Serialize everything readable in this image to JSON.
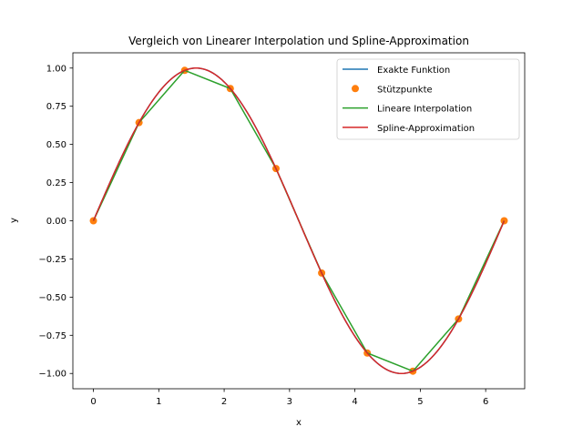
{
  "chart_data": {
    "type": "line",
    "title": "Vergleich von Linearer Interpolation und Spline-Approximation",
    "xlabel": "x",
    "ylabel": "y",
    "xlim": [
      -0.314,
      6.597
    ],
    "ylim": [
      -1.1,
      1.1
    ],
    "xticks": [
      0,
      1,
      2,
      3,
      4,
      5,
      6
    ],
    "xtick_labels": [
      "0",
      "1",
      "2",
      "3",
      "4",
      "5",
      "6"
    ],
    "yticks": [
      -1.0,
      -0.75,
      -0.5,
      -0.25,
      0.0,
      0.25,
      0.5,
      0.75,
      1.0
    ],
    "ytick_labels": [
      "−1.00",
      "−0.75",
      "−0.50",
      "−0.25",
      "0.00",
      "0.25",
      "0.50",
      "0.75",
      "1.00"
    ],
    "grid": false,
    "legend_position": "top-right",
    "sample_points": {
      "x": [
        0.0,
        0.698,
        1.396,
        2.094,
        2.793,
        3.491,
        4.189,
        4.887,
        5.585,
        6.283
      ],
      "y": [
        0.0,
        0.643,
        0.985,
        0.866,
        0.342,
        -0.342,
        -0.866,
        -0.985,
        -0.643,
        0.0
      ]
    },
    "series": [
      {
        "name": "Exakte Funktion",
        "kind": "line",
        "color": "#1f77b4",
        "function": "sin",
        "x_range": [
          0,
          6.283
        ]
      },
      {
        "name": "Stützpunkte",
        "kind": "points",
        "color": "#ff7f0e"
      },
      {
        "name": "Lineare Interpolation",
        "kind": "line",
        "color": "#2ca02c"
      },
      {
        "name": "Spline-Approximation",
        "kind": "line",
        "color": "#d62728",
        "function": "sin",
        "x_range": [
          0,
          6.283
        ]
      }
    ]
  }
}
